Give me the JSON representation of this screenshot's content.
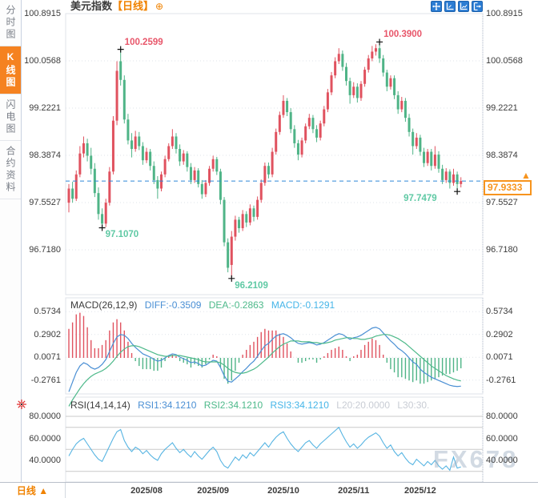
{
  "sidebar": {
    "items": [
      {
        "label": "分时图",
        "active": false
      },
      {
        "label": "K线图",
        "active": true
      },
      {
        "label": "闪电图",
        "active": false
      },
      {
        "label": "合约资料",
        "active": false
      }
    ]
  },
  "title_bar": {
    "symbol": "美元指数",
    "period_tag": "【日线】",
    "add_icon": "⊕",
    "toolbar_icons": [
      "pan-icon",
      "zoom-x-axis-icon",
      "zoom-y-axis-icon",
      "exit-icon"
    ]
  },
  "colors": {
    "up": "#e0525f",
    "down": "#4fb487",
    "up_text": "#e8566a",
    "down_text": "#5fc9a4",
    "accent_orange": "#f7941d",
    "dashed_line": "#2f88d8",
    "diff_line": "#4a8fd4",
    "dea_line": "#4db98a",
    "rsi_line": "#56b4e2",
    "grid": "#dfe3ea",
    "level_line": "#c9c9c9",
    "axis_text": "#3c3c3c"
  },
  "bottom_bar": {
    "period_label": "日线 ▲",
    "dates": [
      {
        "label": "2025/08",
        "index": 21
      },
      {
        "label": "2025/09",
        "index": 39
      },
      {
        "label": "2025/10",
        "index": 58
      },
      {
        "label": "2025/11",
        "index": 77
      },
      {
        "label": "2025/12",
        "index": 95
      }
    ]
  },
  "watermark": "FX678",
  "chart_data": {
    "type": "candlestick-with-indicators",
    "main": {
      "title": "美元指数 日线",
      "price_axis_labels": [
        "100.8915",
        "100.0568",
        "99.2221",
        "98.3874",
        "97.5527",
        "96.7180"
      ],
      "current_price": 97.9333,
      "current_price_label": "97.9333",
      "annotations": [
        {
          "text": "100.2599",
          "price": 100.2599,
          "index": 14,
          "placement": "above-right",
          "color": "up"
        },
        {
          "text": "100.3900",
          "price": 100.39,
          "index": 84,
          "placement": "above-right",
          "color": "up"
        },
        {
          "text": "97.1070",
          "price": 97.107,
          "index": 9,
          "placement": "below-right",
          "color": "down"
        },
        {
          "text": "96.2109",
          "price": 96.2109,
          "index": 44,
          "placement": "below-right",
          "color": "down"
        },
        {
          "text": "97.7479",
          "price": 97.7479,
          "index": 105,
          "placement": "below-left",
          "color": "down"
        }
      ],
      "candles_ohlc": [
        [
          97.55,
          97.88,
          97.38,
          97.8
        ],
        [
          97.8,
          97.92,
          97.55,
          97.62
        ],
        [
          97.62,
          98.12,
          97.58,
          98.05
        ],
        [
          98.05,
          98.55,
          98.0,
          98.42
        ],
        [
          98.42,
          98.72,
          98.35,
          98.6
        ],
        [
          98.6,
          98.68,
          98.28,
          98.38
        ],
        [
          98.38,
          98.52,
          98.05,
          98.15
        ],
        [
          98.15,
          98.25,
          97.65,
          97.72
        ],
        [
          97.72,
          97.82,
          97.25,
          97.35
        ],
        [
          97.35,
          97.45,
          97.107,
          97.18
        ],
        [
          97.18,
          97.62,
          97.12,
          97.55
        ],
        [
          97.55,
          98.18,
          97.5,
          98.1
        ],
        [
          98.1,
          99.08,
          98.05,
          99.0
        ],
        [
          99.0,
          100.05,
          98.92,
          99.88
        ],
        [
          100.05,
          100.2599,
          99.62,
          99.72
        ],
        [
          99.72,
          99.8,
          98.95,
          99.02
        ],
        [
          99.02,
          99.12,
          98.58,
          98.65
        ],
        [
          98.65,
          98.78,
          98.35,
          98.5
        ],
        [
          98.5,
          98.82,
          98.45,
          98.72
        ],
        [
          98.72,
          98.8,
          98.48,
          98.55
        ],
        [
          98.55,
          98.62,
          98.22,
          98.3
        ],
        [
          98.3,
          98.52,
          98.25,
          98.45
        ],
        [
          98.45,
          98.5,
          98.12,
          98.2
        ],
        [
          98.2,
          98.28,
          97.88,
          97.95
        ],
        [
          97.95,
          98.02,
          97.62,
          97.8
        ],
        [
          97.8,
          98.1,
          97.75,
          98.05
        ],
        [
          98.05,
          98.38,
          98.0,
          98.32
        ],
        [
          98.32,
          98.6,
          98.28,
          98.55
        ],
        [
          98.55,
          98.85,
          98.5,
          98.72
        ],
        [
          98.72,
          98.78,
          98.42,
          98.5
        ],
        [
          98.5,
          98.58,
          98.2,
          98.28
        ],
        [
          98.28,
          98.48,
          98.22,
          98.42
        ],
        [
          98.42,
          98.46,
          98.1,
          98.18
        ],
        [
          98.18,
          98.25,
          97.88,
          97.95
        ],
        [
          97.95,
          98.18,
          97.9,
          98.12
        ],
        [
          98.12,
          98.16,
          97.82,
          97.88
        ],
        [
          97.88,
          97.95,
          97.62,
          97.7
        ],
        [
          97.7,
          97.95,
          97.65,
          97.9
        ],
        [
          97.9,
          98.2,
          97.85,
          98.15
        ],
        [
          98.15,
          98.38,
          98.1,
          98.32
        ],
        [
          98.32,
          98.36,
          98.04,
          98.1
        ],
        [
          98.1,
          98.15,
          97.52,
          97.6
        ],
        [
          97.6,
          97.65,
          96.78,
          96.85
        ],
        [
          96.85,
          96.92,
          96.32,
          96.4
        ],
        [
          96.45,
          97.05,
          96.2109,
          96.95
        ],
        [
          96.95,
          97.32,
          96.88,
          97.25
        ],
        [
          97.25,
          97.3,
          97.02,
          97.1
        ],
        [
          97.1,
          97.42,
          97.05,
          97.35
        ],
        [
          97.35,
          97.4,
          97.12,
          97.2
        ],
        [
          97.2,
          97.52,
          97.15,
          97.45
        ],
        [
          97.45,
          97.5,
          97.22,
          97.3
        ],
        [
          97.3,
          97.66,
          97.25,
          97.6
        ],
        [
          97.6,
          97.96,
          97.55,
          97.9
        ],
        [
          97.9,
          98.26,
          97.85,
          98.2
        ],
        [
          98.2,
          98.26,
          97.98,
          98.05
        ],
        [
          98.05,
          98.52,
          98.0,
          98.45
        ],
        [
          98.45,
          98.86,
          98.4,
          98.8
        ],
        [
          98.8,
          99.16,
          98.75,
          99.1
        ],
        [
          99.1,
          99.45,
          99.05,
          99.35
        ],
        [
          99.35,
          99.4,
          99.08,
          99.15
        ],
        [
          99.15,
          99.22,
          98.78,
          98.85
        ],
        [
          98.85,
          98.92,
          98.52,
          98.6
        ],
        [
          98.6,
          98.66,
          98.3,
          98.4
        ],
        [
          98.4,
          98.7,
          98.35,
          98.65
        ],
        [
          98.65,
          98.95,
          98.6,
          98.9
        ],
        [
          98.9,
          99.12,
          98.85,
          99.05
        ],
        [
          99.05,
          99.1,
          98.78,
          98.85
        ],
        [
          98.85,
          98.92,
          98.62,
          98.7
        ],
        [
          98.7,
          99.0,
          98.65,
          98.95
        ],
        [
          98.95,
          99.26,
          98.9,
          99.2
        ],
        [
          99.2,
          99.56,
          99.15,
          99.5
        ],
        [
          99.5,
          99.86,
          99.45,
          99.8
        ],
        [
          99.8,
          100.12,
          99.75,
          100.05
        ],
        [
          100.05,
          100.28,
          100.0,
          100.18
        ],
        [
          100.18,
          100.24,
          99.88,
          99.95
        ],
        [
          99.95,
          100.02,
          99.62,
          99.7
        ],
        [
          99.7,
          99.76,
          99.3,
          99.45
        ],
        [
          99.45,
          99.68,
          99.4,
          99.6
        ],
        [
          99.6,
          99.66,
          99.32,
          99.4
        ],
        [
          99.4,
          99.7,
          99.35,
          99.65
        ],
        [
          99.65,
          99.95,
          99.6,
          99.9
        ],
        [
          99.9,
          100.16,
          99.85,
          100.1
        ],
        [
          100.1,
          100.32,
          100.05,
          100.22
        ],
        [
          100.22,
          100.35,
          100.15,
          100.28
        ],
        [
          100.28,
          100.39,
          100.02,
          100.1
        ],
        [
          100.1,
          100.16,
          99.78,
          99.85
        ],
        [
          99.85,
          99.9,
          99.52,
          99.6
        ],
        [
          99.6,
          99.8,
          99.55,
          99.75
        ],
        [
          99.75,
          99.8,
          99.38,
          99.45
        ],
        [
          99.45,
          99.52,
          99.12,
          99.2
        ],
        [
          99.2,
          99.42,
          99.15,
          99.35
        ],
        [
          99.35,
          99.4,
          98.98,
          99.05
        ],
        [
          99.05,
          99.12,
          98.72,
          98.8
        ],
        [
          98.8,
          98.86,
          98.4,
          98.55
        ],
        [
          98.55,
          98.78,
          98.5,
          98.7
        ],
        [
          98.7,
          98.75,
          98.38,
          98.45
        ],
        [
          98.45,
          98.52,
          98.18,
          98.25
        ],
        [
          98.25,
          98.5,
          98.2,
          98.45
        ],
        [
          98.45,
          98.5,
          98.12,
          98.2
        ],
        [
          98.2,
          98.55,
          98.15,
          98.4
        ],
        [
          98.4,
          98.46,
          98.08,
          98.15
        ],
        [
          98.15,
          98.22,
          97.88,
          97.95
        ],
        [
          97.95,
          98.16,
          97.9,
          98.1
        ],
        [
          98.1,
          98.14,
          97.8,
          97.9
        ],
        [
          97.9,
          98.15,
          97.85,
          98.05
        ],
        [
          98.05,
          98.1,
          97.7479,
          97.88
        ],
        [
          97.88,
          98.0,
          97.82,
          97.9333
        ]
      ]
    },
    "macd": {
      "header": {
        "name": "MACD(26,12,9)",
        "diff": "DIFF:-0.3509",
        "dea": "DEA:-0.2863",
        "macd": "MACD:-0.1291"
      },
      "axis_labels": [
        "0.5734",
        "0.2902",
        "0.0071",
        "-0.2761"
      ],
      "histogram_rule": "2*(diff-dea)",
      "diff": [
        -0.42,
        -0.3,
        -0.18,
        -0.1,
        -0.06,
        -0.08,
        -0.12,
        -0.14,
        -0.12,
        -0.08,
        -0.02,
        0.08,
        0.18,
        0.26,
        0.29,
        0.28,
        0.24,
        0.18,
        0.13,
        0.09,
        0.05,
        0.03,
        0.01,
        -0.02,
        -0.04,
        -0.03,
        0.0,
        0.03,
        0.05,
        0.04,
        0.01,
        -0.01,
        -0.03,
        -0.06,
        -0.05,
        -0.07,
        -0.1,
        -0.09,
        -0.06,
        -0.03,
        -0.04,
        -0.12,
        -0.22,
        -0.29,
        -0.3,
        -0.26,
        -0.22,
        -0.17,
        -0.13,
        -0.08,
        -0.04,
        0.02,
        0.09,
        0.15,
        0.18,
        0.23,
        0.27,
        0.29,
        0.3,
        0.28,
        0.25,
        0.21,
        0.18,
        0.17,
        0.18,
        0.19,
        0.18,
        0.16,
        0.17,
        0.19,
        0.22,
        0.25,
        0.28,
        0.3,
        0.29,
        0.26,
        0.23,
        0.25,
        0.26,
        0.28,
        0.31,
        0.34,
        0.37,
        0.38,
        0.36,
        0.31,
        0.26,
        0.21,
        0.17,
        0.12,
        0.09,
        0.05,
        0.0,
        -0.05,
        -0.08,
        -0.14,
        -0.18,
        -0.21,
        -0.24,
        -0.26,
        -0.28,
        -0.3,
        -0.32,
        -0.34,
        -0.35,
        -0.355,
        -0.3509
      ],
      "dea": [
        -0.6,
        -0.52,
        -0.45,
        -0.38,
        -0.32,
        -0.27,
        -0.23,
        -0.2,
        -0.18,
        -0.16,
        -0.13,
        -0.09,
        -0.04,
        0.02,
        0.07,
        0.11,
        0.14,
        0.15,
        0.15,
        0.14,
        0.12,
        0.1,
        0.08,
        0.06,
        0.04,
        0.03,
        0.02,
        0.02,
        0.03,
        0.03,
        0.03,
        0.02,
        0.01,
        0.0,
        -0.01,
        -0.02,
        -0.04,
        -0.05,
        -0.05,
        -0.05,
        -0.05,
        -0.06,
        -0.09,
        -0.13,
        -0.16,
        -0.18,
        -0.19,
        -0.19,
        -0.18,
        -0.16,
        -0.14,
        -0.11,
        -0.07,
        -0.03,
        0.01,
        0.06,
        0.1,
        0.14,
        0.17,
        0.19,
        0.21,
        0.21,
        0.21,
        0.2,
        0.2,
        0.2,
        0.19,
        0.19,
        0.18,
        0.18,
        0.19,
        0.2,
        0.22,
        0.23,
        0.24,
        0.25,
        0.25,
        0.24,
        0.24,
        0.23,
        0.23,
        0.24,
        0.25,
        0.27,
        0.28,
        0.29,
        0.29,
        0.28,
        0.26,
        0.24,
        0.21,
        0.18,
        0.14,
        0.1,
        0.06,
        0.02,
        -0.02,
        -0.06,
        -0.1,
        -0.13,
        -0.16,
        -0.19,
        -0.22,
        -0.24,
        -0.26,
        -0.275,
        -0.2863
      ]
    },
    "rsi": {
      "header": {
        "name": "RSI(14,14,14)",
        "rsi1": "RSI1:34.1210",
        "rsi2": "RSI2:34.1210",
        "rsi3": "RSI3:34.1210",
        "l20": "L20:20.0000",
        "l30": "L30:30."
      },
      "axis_labels": [
        "80.0000",
        "60.0000",
        "40.0000"
      ],
      "level_lines": [
        80,
        70,
        50,
        30
      ],
      "values": [
        44,
        50,
        55,
        58,
        60,
        55,
        50,
        45,
        41,
        39,
        46,
        53,
        60,
        66,
        68,
        58,
        52,
        48,
        52,
        50,
        46,
        49,
        45,
        42,
        40,
        46,
        50,
        53,
        56,
        51,
        47,
        50,
        46,
        43,
        48,
        44,
        41,
        45,
        49,
        52,
        48,
        40,
        35,
        33,
        38,
        43,
        40,
        45,
        42,
        47,
        44,
        48,
        52,
        56,
        52,
        57,
        61,
        64,
        66,
        60,
        55,
        51,
        48,
        52,
        56,
        58,
        54,
        51,
        55,
        58,
        61,
        64,
        67,
        70,
        63,
        57,
        52,
        55,
        51,
        54,
        58,
        61,
        63,
        65,
        62,
        56,
        51,
        54,
        48,
        44,
        47,
        42,
        38,
        36,
        41,
        38,
        35,
        39,
        36,
        40,
        35,
        32,
        35,
        31,
        43,
        33,
        34.12
      ]
    }
  }
}
